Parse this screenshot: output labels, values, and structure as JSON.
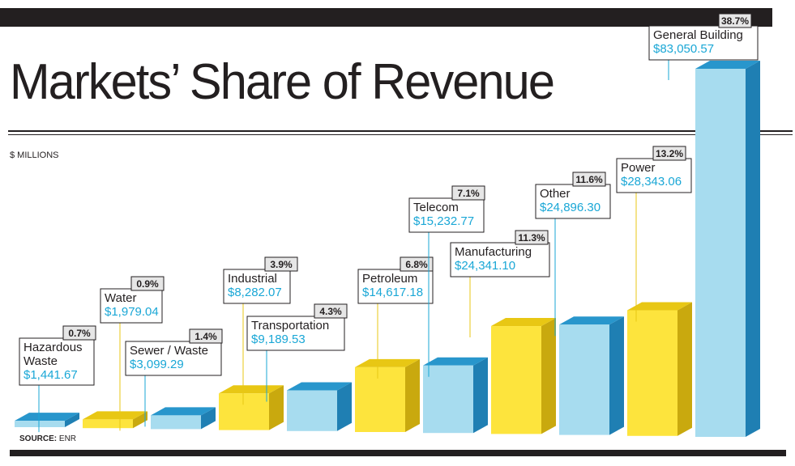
{
  "title": "Markets’ Share of Revenue",
  "units_label": "$ MILLIONS",
  "source": {
    "label": "SOURCE:",
    "value": "ENR"
  },
  "colors": {
    "yellow_front": "#fde43d",
    "yellow_top": "#e8c714",
    "yellow_side": "#c9a90e",
    "blue_front": "#a7dcef",
    "blue_top": "#2896cc",
    "blue_side": "#1f7fb3",
    "value_text": "#1aa7d6",
    "dark": "#231f20"
  },
  "chart_data": {
    "type": "bar",
    "title": "Markets’ Share of Revenue",
    "ylabel": "$ MILLIONS",
    "categories": [
      "Hazardous Waste",
      "Water",
      "Sewer / Waste",
      "Industrial",
      "Transportation",
      "Petroleum",
      "Telecom",
      "Manufacturing",
      "Other",
      "Power",
      "General Building"
    ],
    "values": [
      1441.67,
      1979.04,
      3099.29,
      8282.07,
      9189.53,
      14617.18,
      15232.77,
      24341.1,
      24896.3,
      28343.06,
      83050.57
    ],
    "value_labels": [
      "$1,441.67",
      "$1,979.04",
      "$3,099.29",
      "$8,282.07",
      "$9,189.53",
      "$14,617.18",
      "$15,232.77",
      "$24,341.10",
      "$24,896.30",
      "$28,343.06",
      "$83,050.57"
    ],
    "percent_labels": [
      "0.7%",
      "0.9%",
      "1.4%",
      "3.9%",
      "4.3%",
      "6.8%",
      "7.1%",
      "11.3%",
      "11.6%",
      "13.2%",
      "38.7%"
    ],
    "name_lines": [
      [
        "Hazardous",
        "Waste"
      ],
      [
        "Water"
      ],
      [
        "Sewer / Waste"
      ],
      [
        "Industrial"
      ],
      [
        "Transportation"
      ],
      [
        "Petroleum"
      ],
      [
        "Telecom"
      ],
      [
        "Manufacturing"
      ],
      [
        "Other"
      ],
      [
        "Power"
      ],
      [
        "General Building"
      ]
    ],
    "bar_colors": [
      "blue",
      "yellow",
      "blue",
      "yellow",
      "blue",
      "yellow",
      "blue",
      "yellow",
      "blue",
      "yellow",
      "blue"
    ],
    "grid": false,
    "legend": "none"
  }
}
